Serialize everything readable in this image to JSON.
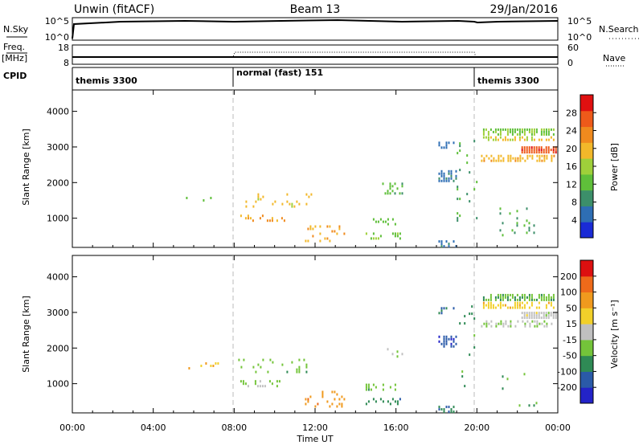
{
  "header": {
    "radar": "Unwin (fitACF)",
    "beam": "Beam 13",
    "date": "29/Jan/2016"
  },
  "nsky_panel": {
    "left_label": "N.Sky",
    "left_ticks": [
      "10^5",
      "10^0"
    ],
    "right_ticks": [
      "10^5",
      "10^0"
    ],
    "right_label": "N.Search"
  },
  "freq_panel": {
    "left_label_line1": "Freq.",
    "left_label_line2": "[MHz]",
    "left_ticks": [
      "18",
      "8"
    ],
    "right_ticks": [
      "60",
      "0"
    ],
    "right_label": "Nave"
  },
  "cpid_panel": {
    "label": "CPID",
    "segments": [
      {
        "name": "themis 3300",
        "start_hour": 0,
        "end_hour": 8
      },
      {
        "name": "normal (fast) 151",
        "start_hour": 8,
        "end_hour": 20
      },
      {
        "name": "themis 3300",
        "start_hour": 20,
        "end_hour": 24
      }
    ]
  },
  "colors": {
    "power": [
      "#1a2bd6",
      "#2e6eb4",
      "#3c8f6a",
      "#5fbf3a",
      "#9fd03a",
      "#f2b82a",
      "#f08a1e",
      "#ee5a1a",
      "#e01010"
    ],
    "velocity": [
      "#2323c8",
      "#2a5aa8",
      "#2f8a55",
      "#74c43a",
      "#c0c0c0",
      "#f2d02a",
      "#f09a1e",
      "#ee6a1a",
      "#dd1010"
    ]
  },
  "chart_data": [
    {
      "type": "heatmap",
      "name": "power",
      "ylabel": "Slant Range [km]",
      "yticks": [
        1000,
        2000,
        3000,
        4000
      ],
      "ylim": [
        180,
        4600
      ],
      "xlim": [
        0,
        24
      ],
      "colorbar_label": "Power [dB]",
      "colorbar_ticks": [
        "4",
        "8",
        "12",
        "16",
        "20",
        "24",
        "28"
      ],
      "colorbar_range": [
        0,
        32
      ],
      "regions": [
        {
          "t0": 20.3,
          "t1": 23.8,
          "r0": 3380,
          "r1": 3520,
          "value": 14,
          "density": 0.7
        },
        {
          "t0": 20.3,
          "t1": 23.8,
          "r0": 3200,
          "r1": 3300,
          "value": 18,
          "density": 0.55
        },
        {
          "t0": 22.2,
          "t1": 23.9,
          "r0": 2870,
          "r1": 3020,
          "value": 27,
          "density": 0.95
        },
        {
          "t0": 20.2,
          "t1": 23.8,
          "r0": 2600,
          "r1": 2780,
          "value": 20,
          "density": 0.5
        },
        {
          "t0": 18.1,
          "t1": 19.0,
          "r0": 2050,
          "r1": 2350,
          "value": 6,
          "density": 0.55
        },
        {
          "t0": 18.1,
          "t1": 18.9,
          "r0": 2950,
          "r1": 3150,
          "value": 5,
          "density": 0.4
        },
        {
          "t0": 18.1,
          "t1": 19.0,
          "r0": 200,
          "r1": 380,
          "value": 6,
          "density": 0.5
        },
        {
          "t0": 14.5,
          "t1": 16.0,
          "r0": 800,
          "r1": 1000,
          "value": 12,
          "density": 0.35
        },
        {
          "t0": 14.5,
          "t1": 16.2,
          "r0": 400,
          "r1": 600,
          "value": 14,
          "density": 0.3
        },
        {
          "t0": 15.2,
          "t1": 16.3,
          "r0": 1700,
          "r1": 2000,
          "value": 12,
          "density": 0.2
        },
        {
          "t0": 8.3,
          "t1": 10.5,
          "r0": 900,
          "r1": 1100,
          "value": 22,
          "density": 0.25
        },
        {
          "t0": 11.5,
          "t1": 13.5,
          "r0": 380,
          "r1": 800,
          "value": 21,
          "density": 0.2
        },
        {
          "t0": 8.2,
          "t1": 12.0,
          "r0": 1300,
          "r1": 1700,
          "value": 19,
          "density": 0.1
        },
        {
          "t0": 19.0,
          "t1": 20.0,
          "r0": 900,
          "r1": 3200,
          "value": 10,
          "density": 0.06
        },
        {
          "t0": 21.0,
          "t1": 23.0,
          "r0": 400,
          "r1": 1300,
          "value": 10,
          "density": 0.05
        },
        {
          "t0": 5.5,
          "t1": 7.2,
          "r0": 1400,
          "r1": 1600,
          "value": 14,
          "density": 0.15
        }
      ]
    },
    {
      "type": "heatmap",
      "name": "velocity",
      "ylabel": "Slant Range [km]",
      "yticks": [
        1000,
        2000,
        3000,
        4000
      ],
      "ylim": [
        180,
        4600
      ],
      "xlim": [
        0,
        24
      ],
      "xlabel": "Time UT",
      "xticks": [
        "00:00",
        "04:00",
        "08:00",
        "12:00",
        "16:00",
        "20:00",
        "00:00"
      ],
      "colorbar_label": "Velocity [m s⁻¹]",
      "colorbar_ticks": [
        "-200",
        "-100",
        "-50",
        "-15",
        "15",
        "50",
        "100",
        "200"
      ],
      "colorbar_range": [
        -250,
        250
      ],
      "regions": [
        {
          "t0": 20.3,
          "t1": 23.8,
          "r0": 3380,
          "r1": 3520,
          "value": -80,
          "density": 0.7
        },
        {
          "t0": 20.3,
          "t1": 23.8,
          "r0": 3150,
          "r1": 3300,
          "value": 60,
          "density": 0.55
        },
        {
          "t0": 22.2,
          "t1": 23.9,
          "r0": 2870,
          "r1": 3020,
          "value": 0,
          "density": 0.95
        },
        {
          "t0": 20.2,
          "t1": 23.8,
          "r0": 2600,
          "r1": 2780,
          "value": -20,
          "density": 0.5
        },
        {
          "t0": 18.1,
          "t1": 19.0,
          "r0": 2050,
          "r1": 2350,
          "value": -180,
          "density": 0.55
        },
        {
          "t0": 18.1,
          "t1": 18.9,
          "r0": 2950,
          "r1": 3150,
          "value": -150,
          "density": 0.4
        },
        {
          "t0": 18.1,
          "t1": 19.0,
          "r0": 200,
          "r1": 380,
          "value": -140,
          "density": 0.5
        },
        {
          "t0": 14.5,
          "t1": 16.0,
          "r0": 800,
          "r1": 1000,
          "value": -60,
          "density": 0.35
        },
        {
          "t0": 14.5,
          "t1": 16.2,
          "r0": 400,
          "r1": 600,
          "value": -120,
          "density": 0.3
        },
        {
          "t0": 15.2,
          "t1": 16.3,
          "r0": 1700,
          "r1": 2000,
          "value": -40,
          "density": 0.2
        },
        {
          "t0": 8.3,
          "t1": 10.5,
          "r0": 900,
          "r1": 1100,
          "value": -40,
          "density": 0.25
        },
        {
          "t0": 11.5,
          "t1": 13.5,
          "r0": 380,
          "r1": 800,
          "value": 120,
          "density": 0.2
        },
        {
          "t0": 8.2,
          "t1": 12.0,
          "r0": 1300,
          "r1": 1700,
          "value": -60,
          "density": 0.1
        },
        {
          "t0": 19.0,
          "t1": 20.0,
          "r0": 900,
          "r1": 3200,
          "value": -100,
          "density": 0.06
        },
        {
          "t0": 21.0,
          "t1": 23.0,
          "r0": 400,
          "r1": 1300,
          "value": -80,
          "density": 0.05
        },
        {
          "t0": 5.5,
          "t1": 7.2,
          "r0": 1400,
          "r1": 1600,
          "value": 80,
          "density": 0.15
        }
      ]
    }
  ]
}
